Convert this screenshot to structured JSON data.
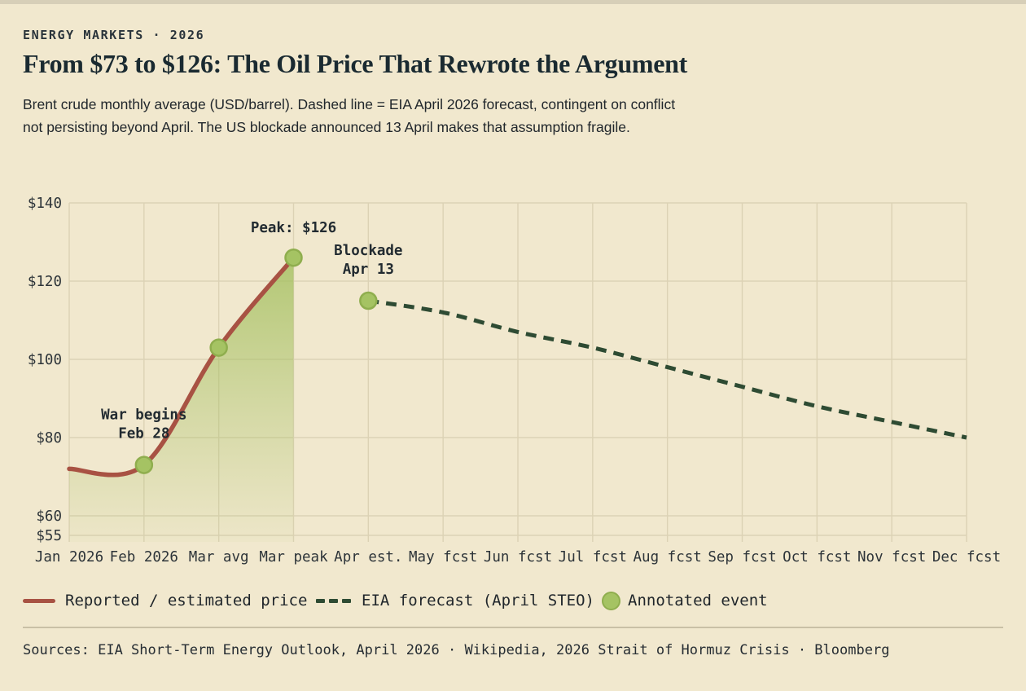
{
  "header": {
    "kicker": "ENERGY MARKETS · 2026",
    "title": "From $73 to $126: The Oil Price That Rewrote the Argument",
    "subtitle": "Brent crude monthly average (USD/barrel). Dashed line = EIA April 2026 forecast, contingent on conflict not persisting beyond April. The US blockade announced 13 April makes that assumption fragile."
  },
  "chart_data": {
    "type": "line",
    "title": "From $73 to $126: The Oil Price That Rewrote the Argument",
    "unit": "USD/barrel",
    "grid": true,
    "categories": [
      "Jan 2026",
      "Feb 2026",
      "Mar avg",
      "Mar peak",
      "Apr est.",
      "May fcst",
      "Jun fcst",
      "Jul fcst",
      "Aug fcst",
      "Sep fcst",
      "Oct fcst",
      "Nov fcst",
      "Dec fcst"
    ],
    "y_ticks": [
      140,
      120,
      100,
      80,
      60,
      55
    ],
    "y_tick_labels": [
      "$140",
      "$120",
      "$100",
      "$80",
      "$60",
      "$55"
    ],
    "ylim": [
      53,
      140
    ],
    "series": [
      {
        "name": "Reported / estimated price",
        "style": "solid-area",
        "color": "#a85243",
        "fill_color": "#a3bf5e",
        "start_index": 0,
        "values": [
          72,
          73,
          103,
          126
        ]
      },
      {
        "name": "EIA forecast (April STEO)",
        "style": "dashed",
        "color": "#2e4b33",
        "start_index": 4,
        "values": [
          115,
          112,
          107,
          103,
          98,
          93,
          88,
          84,
          80
        ]
      }
    ],
    "events": [
      {
        "category": "Feb 2026",
        "index": 1,
        "value": 73,
        "label_lines": [
          "War begins",
          "Feb 28"
        ]
      },
      {
        "category": "Mar avg",
        "index": 2,
        "value": 103,
        "label_lines": []
      },
      {
        "category": "Mar peak",
        "index": 3,
        "value": 126,
        "label_lines": [
          "Peak: $126"
        ]
      },
      {
        "category": "Apr est.",
        "index": 4,
        "value": 115,
        "label_lines": [
          "Blockade",
          "Apr 13"
        ]
      }
    ],
    "dot_color": "#a5c363",
    "dot_stroke": "#8fae4e",
    "grid_color": "#dcd2b5",
    "tick_color": "#2d3439",
    "annotation_color": "#222b31",
    "legend_position": "bottom"
  },
  "legend": {
    "items": [
      {
        "label": "Reported / estimated price",
        "swatch": "line",
        "color": "#a85243"
      },
      {
        "label": "EIA forecast (April STEO)",
        "swatch": "dashes",
        "color": "#2e4b33"
      },
      {
        "label": "Annotated event",
        "swatch": "dot",
        "color": "#a5c363"
      }
    ]
  },
  "footer": {
    "sources": "Sources: EIA Short-Term Energy Outlook, April 2026 · Wikipedia, 2026 Strait of Hormuz Crisis · Bloomberg"
  }
}
